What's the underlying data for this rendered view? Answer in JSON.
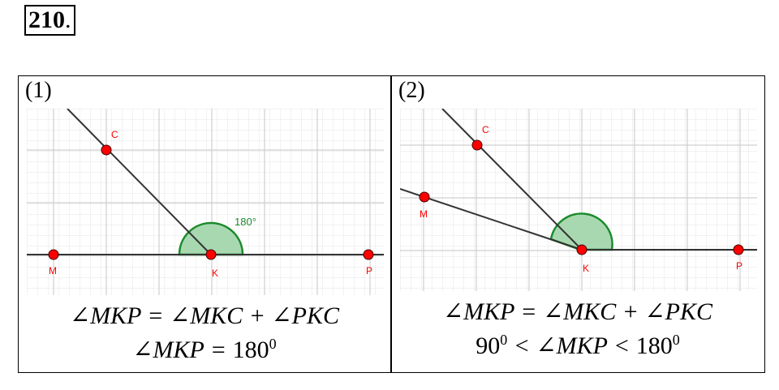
{
  "problem": {
    "number": "210",
    "suffix": "."
  },
  "panel1": {
    "label": "(1)",
    "points": {
      "C": "C",
      "M": "M",
      "K": "K",
      "P": "P"
    },
    "angle_label": "180°",
    "formula_line1": "∠MKP = ∠MKC + ∠PKC",
    "formula_line2_prefix": "∠MKP = ",
    "formula_line2_value": "180",
    "formula_line2_sup": "0"
  },
  "panel2": {
    "label": "(2)",
    "points": {
      "C": "C",
      "M": "M",
      "K": "K",
      "P": "P"
    },
    "formula_line1": "∠MKP = ∠MKC + ∠PKC",
    "formula_line2_a": "90",
    "formula_line2_a_sup": "0",
    "formula_line2_mid": " < ∠MKP < ",
    "formula_line2_b": "180",
    "formula_line2_b_sup": "0"
  },
  "colors": {
    "point": "#ff0000",
    "arc_fill": "#a8d8b0",
    "arc_stroke": "#1a8a2a",
    "line": "#333333",
    "grid_minor": "#e6e6e6",
    "grid_major": "#cfcfcf",
    "angle_text": "#1a8a2a"
  }
}
